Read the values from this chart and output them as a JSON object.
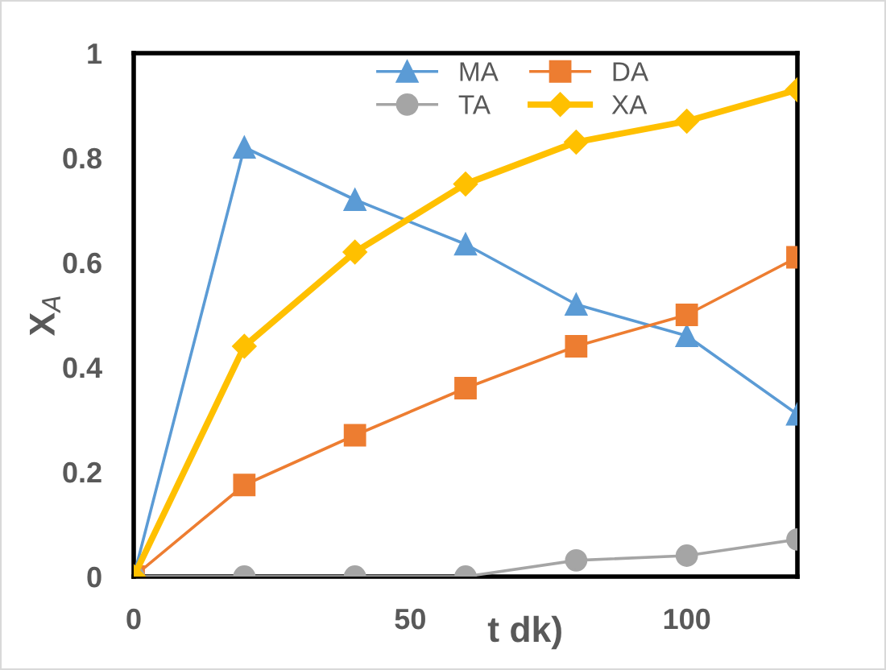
{
  "chart_data": {
    "type": "line",
    "xlabel": "t dk)",
    "ylabel": "X$_{A}$",
    "x": [
      0,
      20,
      40,
      60,
      80,
      100,
      120
    ],
    "xlim": [
      0,
      120
    ],
    "xticks": [
      0,
      50,
      100
    ],
    "ylim": [
      0,
      1
    ],
    "yticks": [
      0,
      0.2,
      0.4,
      0.6,
      0.8,
      1
    ],
    "grid": false,
    "legend": "top right",
    "series": [
      {
        "name": "MA",
        "color": "#5b9bd5",
        "marker": "triangle",
        "values": [
          0,
          0.82,
          0.72,
          0.635,
          0.52,
          0.46,
          0.31
        ]
      },
      {
        "name": "DA",
        "color": "#ed7d31",
        "marker": "square",
        "values": [
          0,
          0.175,
          0.27,
          0.36,
          0.44,
          0.5,
          0.61
        ]
      },
      {
        "name": "TA",
        "color": "#a5a5a5",
        "marker": "circle",
        "values": [
          0,
          0,
          0,
          0,
          0.031,
          0.04,
          0.071
        ]
      },
      {
        "name": "XA",
        "color": "#ffc000",
        "marker": "diamond",
        "values": [
          0,
          0.44,
          0.62,
          0.75,
          0.83,
          0.87,
          0.93
        ]
      }
    ]
  }
}
